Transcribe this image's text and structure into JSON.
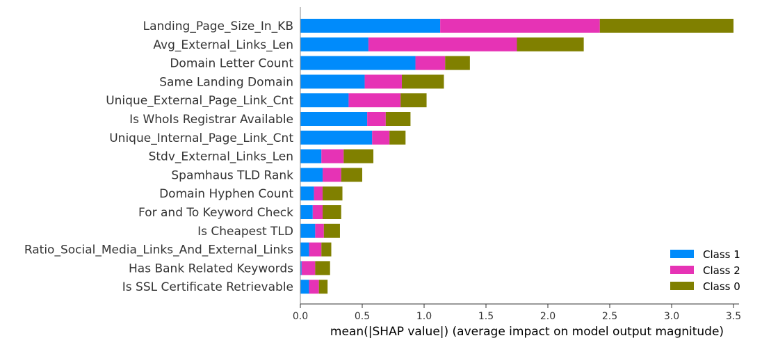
{
  "chart_data": {
    "type": "bar",
    "orientation": "horizontal",
    "stacked": true,
    "title": "",
    "xlabel": "mean(|SHAP value|) (average impact on model output magnitude)",
    "ylabel": "",
    "xlim": [
      0,
      3.5
    ],
    "xticks": [
      "0.0",
      "0.5",
      "1.0",
      "1.5",
      "2.0",
      "2.5",
      "3.0",
      "3.5"
    ],
    "grid": false,
    "legend_position": "bottom-right",
    "categories": [
      "Landing_Page_Size_In_KB",
      "Avg_External_Links_Len",
      "Domain Letter Count",
      "Same Landing Domain",
      "Unique_External_Page_Link_Cnt",
      "Is WhoIs Registrar Available",
      "Unique_Internal_Page_Link_Cnt",
      "Stdv_External_Links_Len",
      "Spamhaus TLD Rank",
      "Domain Hyphen Count",
      "For and To Keyword Check",
      "Is Cheapest TLD",
      "Ratio_Social_Media_Links_And_External_Links",
      "Has Bank Related Keywords",
      "Is SSL Certificate Retrievable"
    ],
    "series": [
      {
        "name": "Class 1",
        "color": "#008bfb",
        "values": [
          1.13,
          0.55,
          0.93,
          0.52,
          0.39,
          0.54,
          0.58,
          0.17,
          0.18,
          0.11,
          0.1,
          0.12,
          0.07,
          0.01,
          0.07
        ]
      },
      {
        "name": "Class 2",
        "color": "#e633b5",
        "values": [
          1.29,
          1.2,
          0.24,
          0.3,
          0.42,
          0.15,
          0.14,
          0.18,
          0.15,
          0.07,
          0.08,
          0.07,
          0.1,
          0.11,
          0.08
        ]
      },
      {
        "name": "Class 0",
        "color": "#808000",
        "values": [
          1.08,
          0.54,
          0.2,
          0.34,
          0.21,
          0.2,
          0.13,
          0.24,
          0.17,
          0.16,
          0.15,
          0.13,
          0.08,
          0.12,
          0.07
        ]
      }
    ],
    "legend_order": [
      "Class 1",
      "Class 2",
      "Class 0"
    ]
  }
}
